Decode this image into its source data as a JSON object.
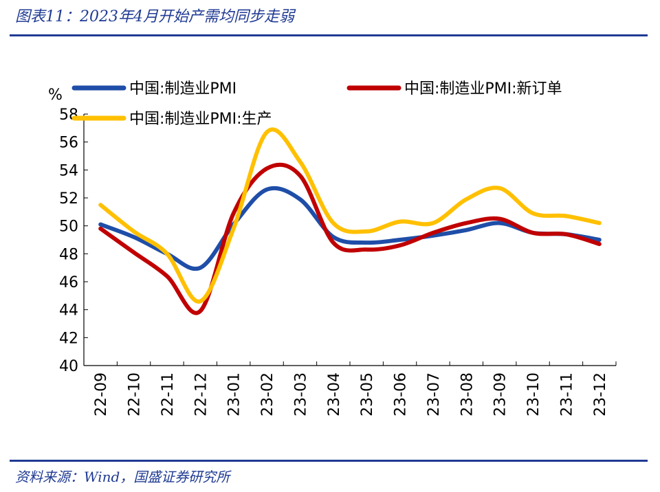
{
  "header": {
    "title": "图表11：2023年4月开始产需均同步走弱"
  },
  "footer": {
    "source": "资料来源：Wind，国盛证券研究所"
  },
  "chart_data": {
    "type": "line",
    "ylabel": "%",
    "ylim": [
      40,
      58
    ],
    "yticks": [
      40,
      42,
      44,
      46,
      48,
      50,
      52,
      54,
      56,
      58
    ],
    "categories": [
      "22-09",
      "22-10",
      "22-11",
      "22-12",
      "23-01",
      "23-02",
      "23-03",
      "23-04",
      "23-05",
      "23-06",
      "23-07",
      "23-08",
      "23-09",
      "23-10",
      "23-11",
      "23-12"
    ],
    "legend_position": "top",
    "series": [
      {
        "name": "中国:制造业PMI",
        "color": "#1f4ea8",
        "values": [
          50.1,
          49.2,
          48.0,
          47.0,
          50.1,
          52.6,
          51.9,
          49.2,
          48.8,
          49.0,
          49.3,
          49.7,
          50.2,
          49.5,
          49.4,
          49.0
        ]
      },
      {
        "name": "中国:制造业PMI:新订单",
        "color": "#c00000",
        "values": [
          49.8,
          48.1,
          46.4,
          43.9,
          50.9,
          54.1,
          53.6,
          48.8,
          48.3,
          48.6,
          49.5,
          50.2,
          50.5,
          49.5,
          49.4,
          48.7
        ]
      },
      {
        "name": "中国:制造业PMI:生产",
        "color": "#ffc000",
        "values": [
          51.5,
          49.6,
          48.0,
          44.6,
          49.8,
          56.7,
          54.6,
          50.2,
          49.6,
          50.3,
          50.2,
          51.9,
          52.7,
          50.9,
          50.7,
          50.2
        ]
      }
    ]
  }
}
